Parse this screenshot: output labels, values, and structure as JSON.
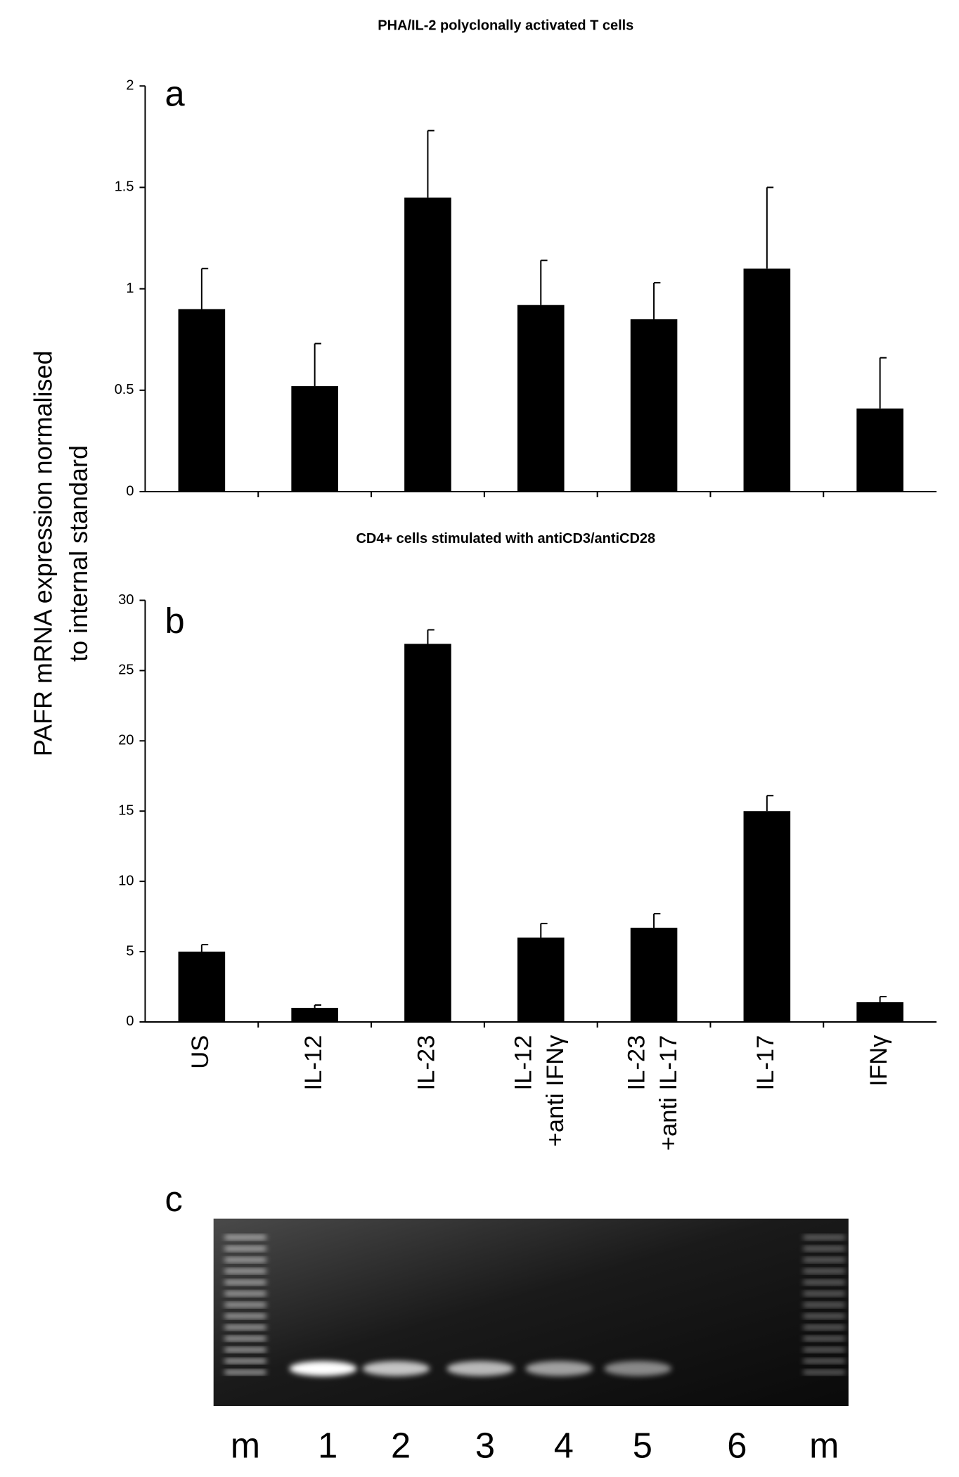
{
  "shared_ylabel": [
    "PAFR mRNA expression normalised",
    "to internal standard"
  ],
  "chart_data": [
    {
      "type": "bar",
      "panel": "a",
      "title": "PHA/IL-2 polyclonally activated T cells",
      "values": [
        0.9,
        0.52,
        1.45,
        0.92,
        0.85,
        1.1,
        0.41
      ],
      "errors": [
        0.2,
        0.21,
        0.33,
        0.22,
        0.18,
        0.4,
        0.25
      ],
      "color": "#000000",
      "ylim": [
        0,
        2
      ],
      "yticks": [
        0,
        0.5,
        1,
        1.5,
        2
      ],
      "grid": false
    },
    {
      "type": "bar",
      "panel": "b",
      "title": "CD4+ cells stimulated with antiCD3/antiCD28",
      "categories": [
        [
          "US"
        ],
        [
          "IL-12"
        ],
        [
          "IL-23"
        ],
        [
          "IL-12",
          "+anti IFNγ"
        ],
        [
          "IL-23",
          "+anti IL-17"
        ],
        [
          "IL-17"
        ],
        [
          "IFNγ"
        ]
      ],
      "values": [
        5,
        1,
        26.9,
        6,
        6.7,
        15,
        1.4
      ],
      "errors": [
        0.5,
        0.2,
        1,
        1,
        1,
        1.1,
        0.4
      ],
      "color": "#000000",
      "ylim": [
        0,
        30
      ],
      "yticks": [
        0,
        5,
        10,
        15,
        20,
        25,
        30
      ],
      "grid": false
    }
  ],
  "gel": {
    "panel": "c",
    "lane_labels": [
      "m",
      "1",
      "2",
      "3",
      "4",
      "5",
      "6",
      "m"
    ]
  }
}
